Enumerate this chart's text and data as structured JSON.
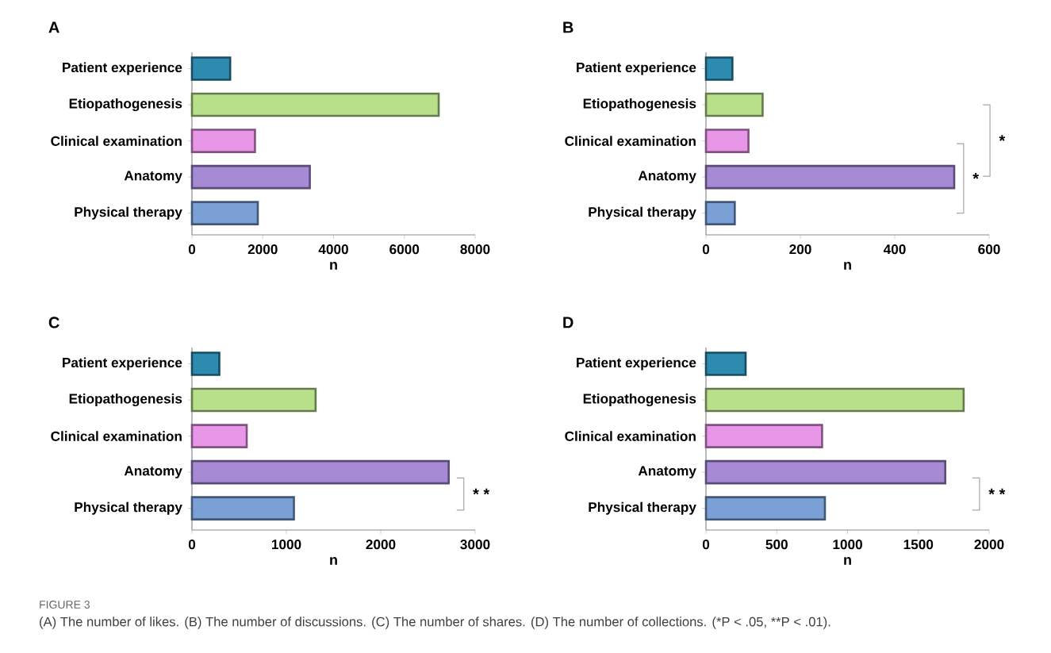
{
  "chart_data": [
    {
      "type": "bar",
      "orientation": "horizontal",
      "title": "A",
      "xlabel": "n",
      "categories": [
        "Patient experience",
        "Etiopathogenesis",
        "Clinical examination",
        "Anatomy",
        "Physical therapy"
      ],
      "values": [
        1080,
        6970,
        1780,
        3330,
        1860
      ],
      "colors": [
        "#2e8bb0",
        "#b8e08a",
        "#e896e8",
        "#a68ad4",
        "#7aa0d6"
      ],
      "xlim": [
        0,
        8000
      ],
      "xticks": [
        0,
        2000,
        4000,
        6000,
        8000
      ],
      "grid": false,
      "annotations": [
        "FIGURE 3",
        "(A) The number of likes. (B) The number of discussions. (C) The number of shares. (D) The number of collections. (*P < .05, **P < .01)."
      ]
    },
    {
      "type": "bar",
      "orientation": "horizontal",
      "title": "B",
      "xlabel": "n",
      "categories": [
        "Patient experience",
        "Etiopathogenesis",
        "Clinical examination",
        "Anatomy",
        "Physical therapy"
      ],
      "values": [
        56,
        120,
        90,
        526,
        61
      ],
      "colors": [
        "#2e8bb0",
        "#b8e08a",
        "#e896e8",
        "#a68ad4",
        "#7aa0d6"
      ],
      "xlim": [
        0,
        600
      ],
      "xticks": [
        0,
        200,
        400,
        600
      ],
      "grid": false,
      "annotations": [
        "*",
        "*"
      ]
    },
    {
      "type": "bar",
      "orientation": "horizontal",
      "title": "C",
      "xlabel": "n",
      "categories": [
        "Patient experience",
        "Etiopathogenesis",
        "Clinical examination",
        "Anatomy",
        "Physical therapy"
      ],
      "values": [
        290,
        1310,
        580,
        2720,
        1080
      ],
      "colors": [
        "#2e8bb0",
        "#b8e08a",
        "#e896e8",
        "#a68ad4",
        "#7aa0d6"
      ],
      "xlim": [
        0,
        3000
      ],
      "xticks": [
        0,
        1000,
        2000,
        3000
      ],
      "grid": false,
      "annotations": [
        "* *"
      ]
    },
    {
      "type": "bar",
      "orientation": "horizontal",
      "title": "D",
      "xlabel": "n",
      "categories": [
        "Patient experience",
        "Etiopathogenesis",
        "Clinical examination",
        "Anatomy",
        "Physical therapy"
      ],
      "values": [
        280,
        1820,
        820,
        1690,
        840
      ],
      "colors": [
        "#2e8bb0",
        "#b8e08a",
        "#e896e8",
        "#a68ad4",
        "#7aa0d6"
      ],
      "xlim": [
        0,
        2000
      ],
      "xticks": [
        0,
        500,
        1000,
        1500,
        2000
      ],
      "grid": false,
      "annotations": [
        "* *"
      ]
    }
  ]
}
